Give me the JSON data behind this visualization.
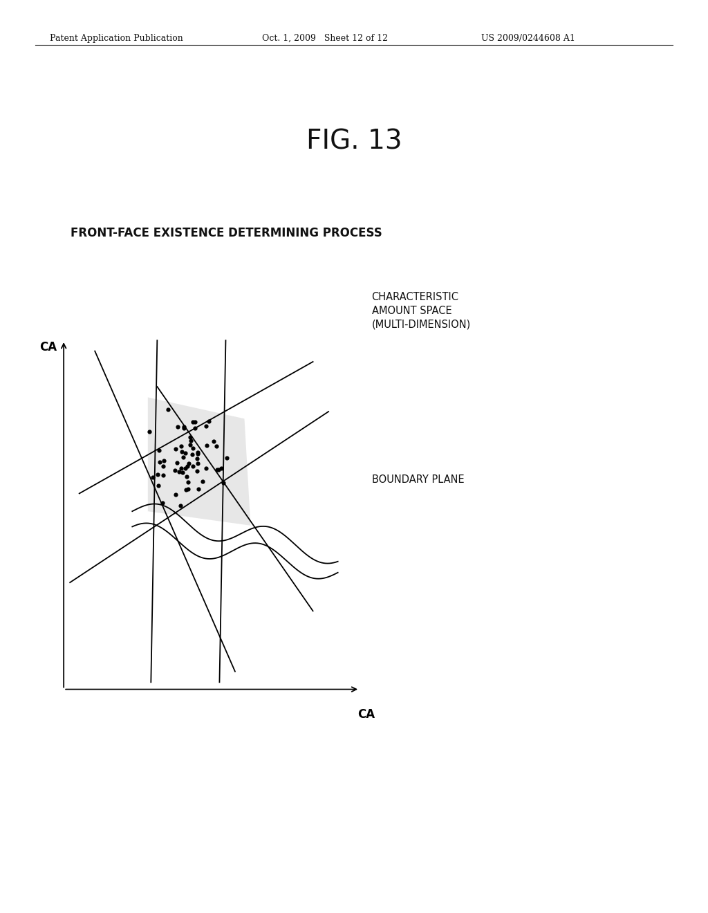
{
  "background_color": "#ffffff",
  "header_left": "Patent Application Publication",
  "header_center": "Oct. 1, 2009   Sheet 12 of 12",
  "header_right": "US 2009/0244608 A1",
  "fig_label": "FIG. 13",
  "subtitle": "FRONT-FACE EXISTENCE DETERMINING PROCESS",
  "axis_xlabel": "CA",
  "axis_ylabel": "CA",
  "label_characteristic": "CHARACTERISTIC\nAMOUNT SPACE\n(MULTI-DIMENSION)",
  "label_boundary": "BOUNDARY PLANE"
}
